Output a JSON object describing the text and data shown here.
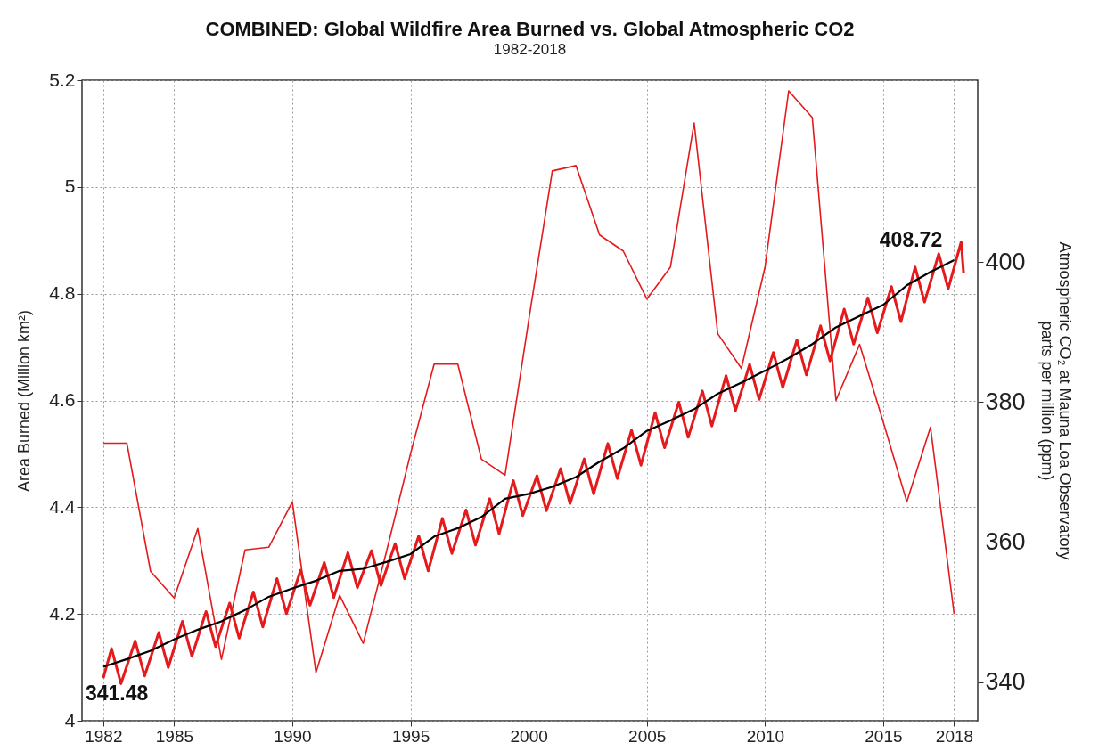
{
  "chart_data": {
    "type": "line",
    "title": "COMBINED: Global Wildfire Area Burned vs. Global Atmospheric CO2",
    "subtitle": "1982-2018",
    "ylabel": "Area Burned (Million km²)",
    "y2label": "Atmospheric CO₂ at Mauna Loa Observatory\nparts per million (ppm)",
    "xlim": [
      1981.1,
      2019
    ],
    "xticks": [
      1982,
      1985,
      1990,
      1995,
      2000,
      2005,
      2010,
      2015,
      2018
    ],
    "ylim": [
      4,
      5.2
    ],
    "yticks": [
      4,
      4.2,
      4.4,
      4.6,
      4.8,
      5,
      5.2
    ],
    "y2lim": [
      334.5,
      426
    ],
    "y2ticks": [
      340,
      360,
      380,
      400
    ],
    "grid": true,
    "annotations": [
      "341.48",
      "408.72"
    ],
    "series": [
      {
        "color": "#e41a1c",
        "x": [
          1982,
          1983,
          1984,
          1985,
          1986,
          1987,
          1988,
          1989,
          1990,
          1991,
          1992,
          1993,
          1994,
          1995,
          1996,
          1997,
          1998,
          1999,
          2000,
          2001,
          2002,
          2003,
          2004,
          2005,
          2006,
          2007,
          2008,
          2009,
          2010,
          2011,
          2012,
          2013,
          2014,
          2015,
          2016,
          2017,
          2018
        ],
        "values": [
          4.52,
          4.52,
          4.28,
          4.23,
          4.36,
          4.115,
          4.32,
          4.325,
          4.41,
          4.09,
          4.235,
          4.145,
          4.32,
          4.5,
          4.668,
          4.668,
          4.49,
          4.46,
          4.75,
          5.03,
          5.04,
          4.91,
          4.88,
          4.79,
          4.85,
          5.12,
          4.725,
          4.66,
          4.85,
          5.18,
          5.13,
          4.6,
          4.705,
          4.56,
          4.41,
          4.55,
          4.2
        ]
      },
      {
        "color": "#e41a1c",
        "axis": "y2",
        "x": [
          1982,
          1982.35,
          1982.75,
          1983.35,
          1983.75,
          1984.35,
          1984.75,
          1985.35,
          1985.75,
          1986.35,
          1986.75,
          1987.35,
          1987.75,
          1988.35,
          1988.75,
          1989.35,
          1989.75,
          1990.35,
          1990.75,
          1991.35,
          1991.75,
          1992.35,
          1992.75,
          1993.35,
          1993.75,
          1994.35,
          1994.75,
          1995.35,
          1995.75,
          1996.35,
          1996.75,
          1997.35,
          1997.75,
          1998.35,
          1998.75,
          1999.35,
          1999.75,
          2000.35,
          2000.75,
          2001.35,
          2001.75,
          2002.35,
          2002.75,
          2003.35,
          2003.75,
          2004.35,
          2004.75,
          2005.35,
          2005.75,
          2006.35,
          2006.75,
          2007.35,
          2007.75,
          2008.35,
          2008.75,
          2009.35,
          2009.75,
          2010.35,
          2010.75,
          2011.35,
          2011.75,
          2012.35,
          2012.75,
          2013.35,
          2013.75,
          2014.35,
          2014.75,
          2015.35,
          2015.75,
          2016.35,
          2016.75,
          2017.35,
          2017.75,
          2018.3,
          2018.4
        ],
        "values": [
          340.6,
          344.8,
          339.8,
          345.9,
          340.9,
          347.1,
          342.1,
          348.7,
          343.7,
          350.1,
          345.1,
          351.3,
          346.3,
          352.9,
          347.9,
          354.8,
          349.8,
          356.0,
          351.0,
          357.1,
          352.1,
          358.5,
          353.5,
          358.8,
          353.8,
          359.8,
          354.8,
          360.9,
          355.9,
          363.4,
          358.4,
          364.6,
          359.6,
          366.2,
          361.2,
          368.8,
          363.8,
          369.5,
          364.5,
          370.5,
          365.5,
          371.9,
          366.9,
          374.1,
          369.1,
          376.0,
          371.0,
          378.5,
          373.5,
          380.0,
          375.0,
          381.6,
          376.6,
          383.8,
          378.8,
          385.4,
          380.4,
          387.1,
          382.1,
          388.9,
          383.9,
          390.9,
          385.9,
          393.3,
          388.3,
          394.9,
          389.9,
          396.5,
          391.5,
          399.3,
          394.3,
          401.2,
          396.2,
          402.9,
          398.5
        ]
      },
      {
        "color": "#000000",
        "axis": "y2",
        "x": [
          1982,
          1983,
          1984,
          1985,
          1986,
          1987,
          1988,
          1989,
          1990,
          1991,
          1992,
          1993,
          1994,
          1995,
          1996,
          1997,
          1998,
          1999,
          2000,
          2001,
          2002,
          2003,
          2004,
          2005,
          2006,
          2007,
          2008,
          2009,
          2010,
          2011,
          2012,
          2013,
          2014,
          2015,
          2016,
          2017,
          2018
        ],
        "values": [
          342.2,
          343.3,
          344.5,
          346.1,
          347.5,
          348.7,
          350.3,
          352.2,
          353.4,
          354.5,
          355.9,
          356.2,
          357.2,
          358.3,
          360.8,
          362.0,
          363.6,
          366.2,
          366.9,
          367.9,
          369.3,
          371.5,
          373.4,
          375.9,
          377.4,
          379.0,
          381.2,
          382.8,
          384.5,
          386.3,
          388.3,
          390.7,
          392.3,
          393.9,
          396.7,
          398.6,
          400.3
        ]
      }
    ]
  }
}
